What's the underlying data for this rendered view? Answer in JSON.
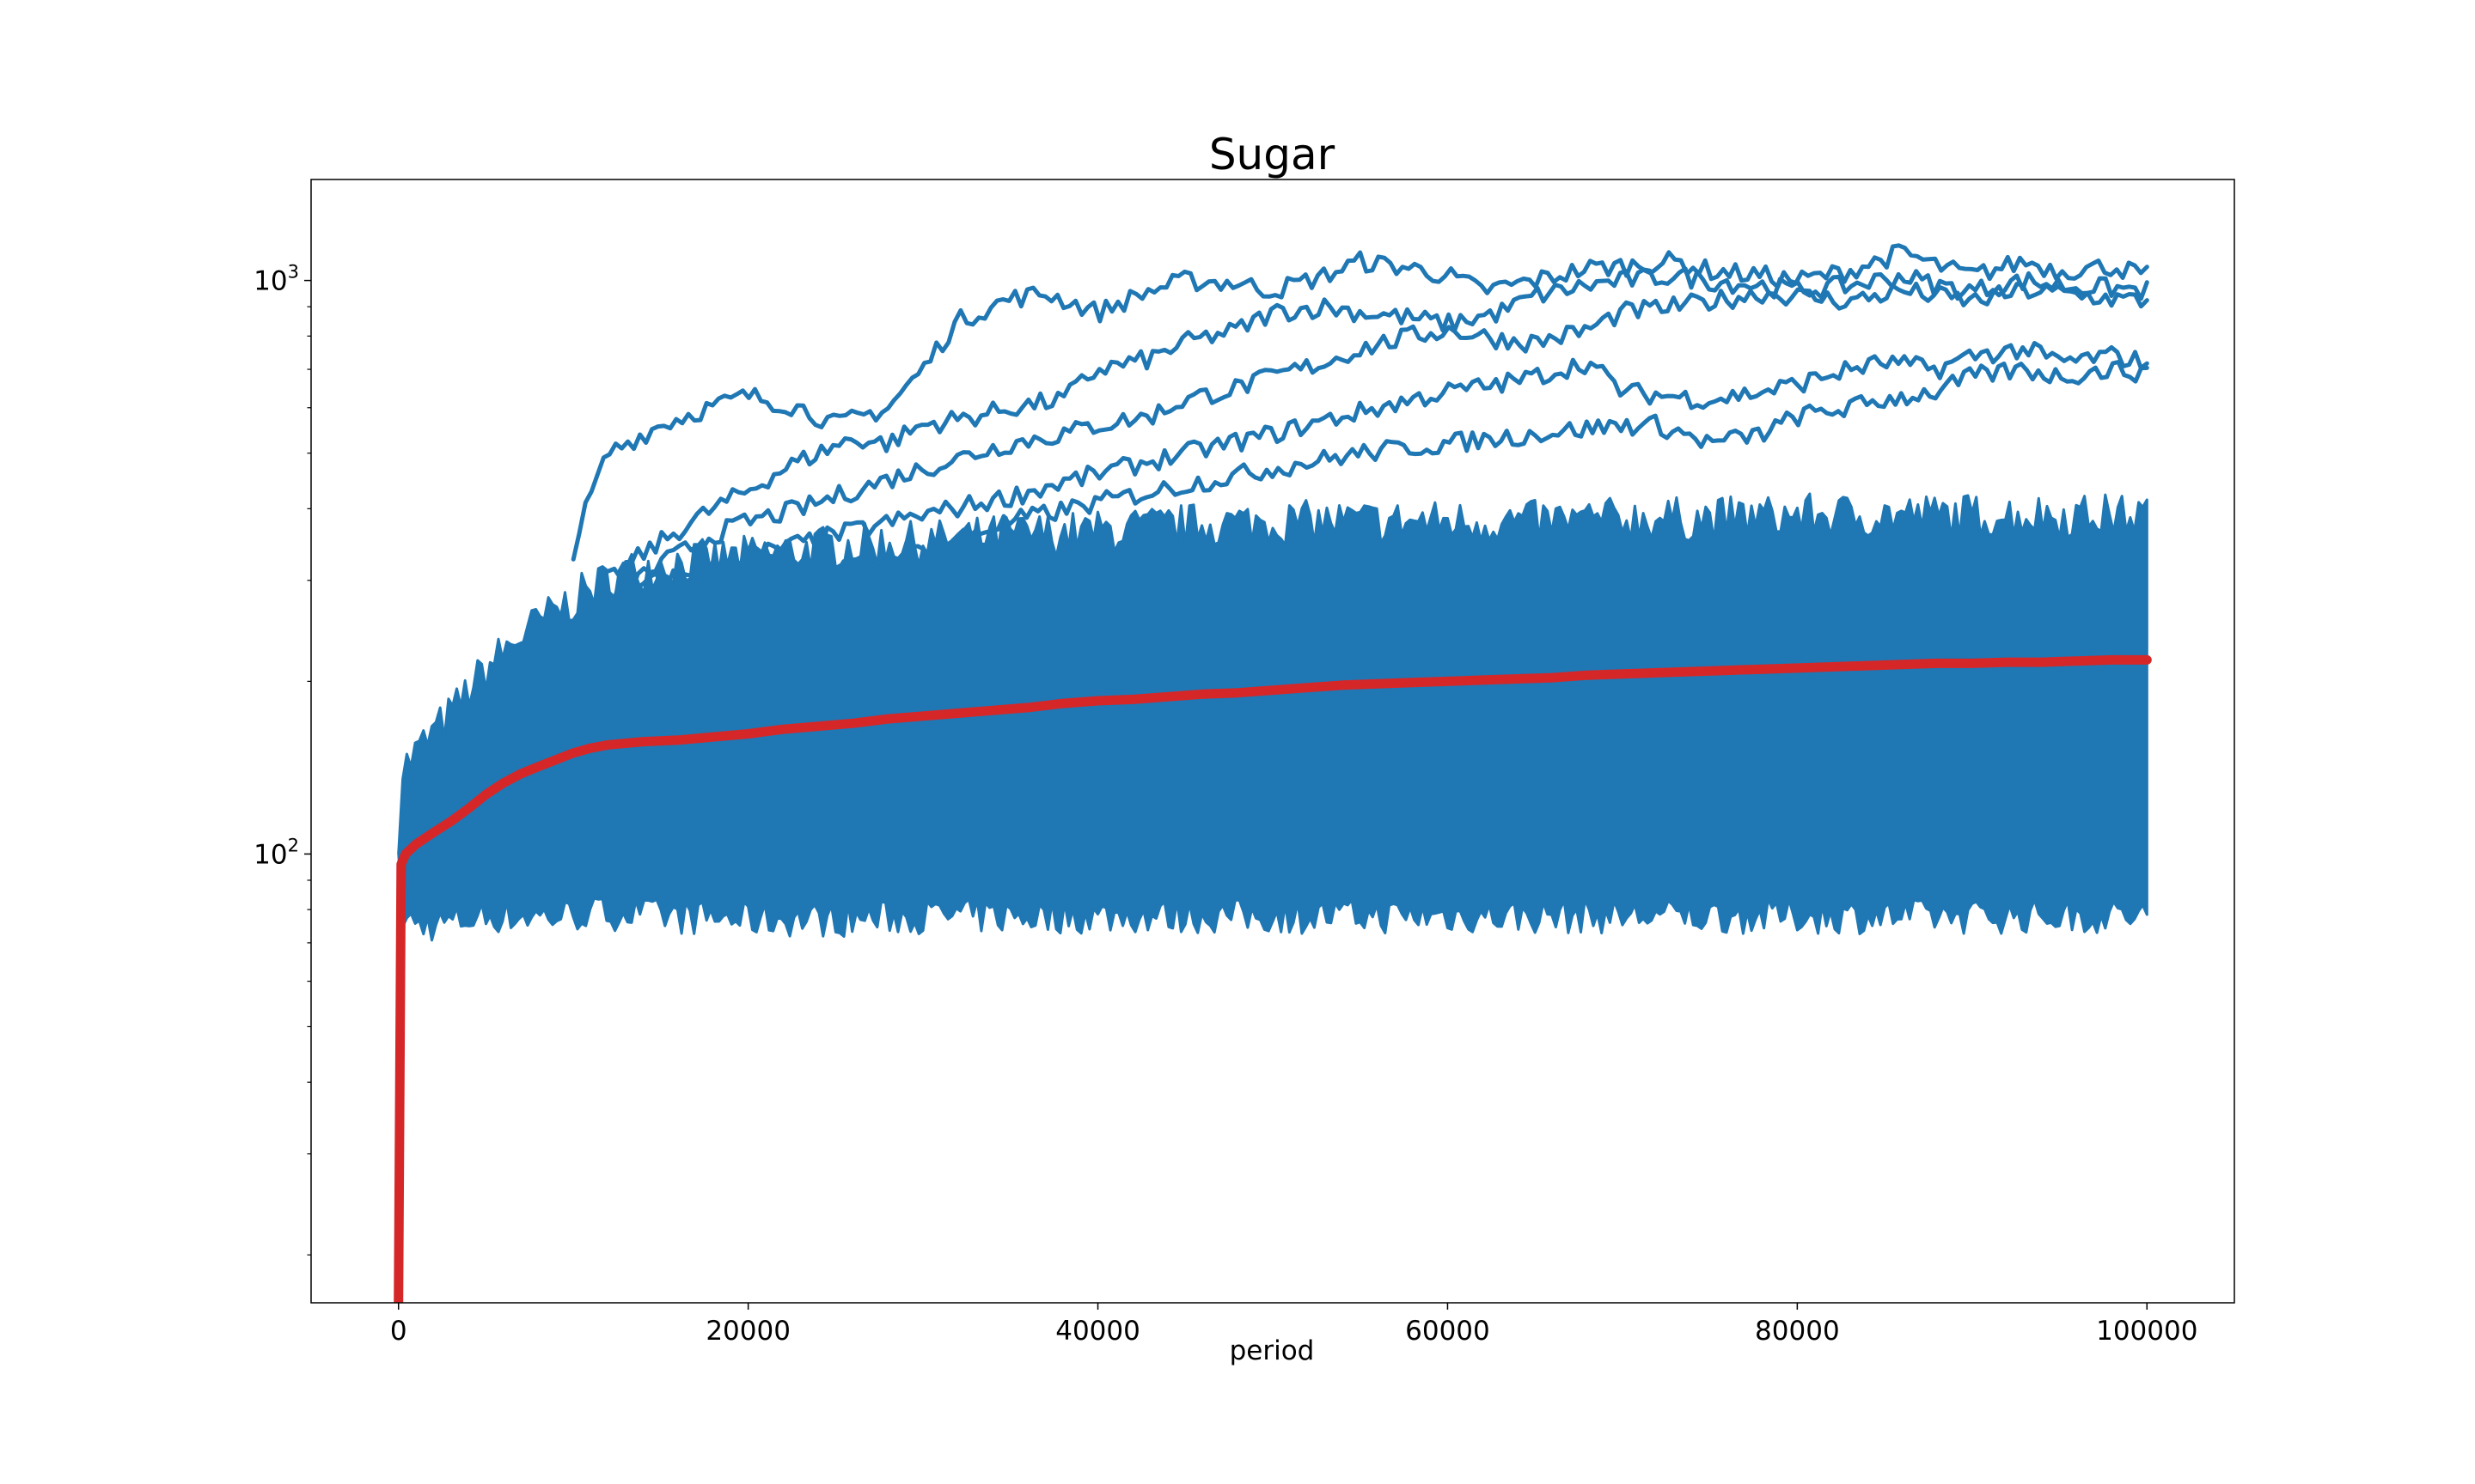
{
  "chart_data": {
    "type": "line",
    "title": "Sugar",
    "xlabel": "period",
    "ylabel": "",
    "xlim": [
      -5000,
      105000
    ],
    "ylim": [
      16.5,
      1500
    ],
    "yscale": "log",
    "grid": false,
    "legend": "none",
    "x_ticks": [
      {
        "value": 0,
        "label": "0"
      },
      {
        "value": 20000,
        "label": "20000"
      },
      {
        "value": 40000,
        "label": "40000"
      },
      {
        "value": 60000,
        "label": "60000"
      },
      {
        "value": 80000,
        "label": "80000"
      },
      {
        "value": 100000,
        "label": "100000"
      }
    ],
    "y_ticks": [
      {
        "value": 100,
        "base": "10",
        "exp": "2"
      },
      {
        "value": 1000,
        "base": "10",
        "exp": "3"
      }
    ],
    "colors": {
      "agents": "#1f77b4",
      "mean": "#d62728"
    },
    "band": {
      "x": [
        0,
        200,
        1000,
        3000,
        5000,
        7000,
        9000,
        11000,
        13000,
        15000,
        20000,
        25000,
        30000,
        35000,
        40000,
        45000,
        50000,
        55000,
        60000,
        65000,
        70000,
        75000,
        80000,
        85000,
        90000,
        95000,
        100000
      ],
      "low": [
        95,
        78,
        75,
        76,
        78,
        78,
        78,
        79,
        79,
        78,
        77,
        77,
        78,
        78,
        78,
        78,
        78,
        78,
        78,
        78,
        78,
        78,
        78,
        78,
        78,
        78,
        78
      ],
      "high": [
        110,
        140,
        150,
        175,
        210,
        240,
        265,
        290,
        310,
        320,
        330,
        345,
        350,
        360,
        365,
        375,
        380,
        380,
        380,
        380,
        385,
        385,
        390,
        390,
        390,
        390,
        390
      ]
    },
    "series": [
      {
        "role": "agent",
        "x": [
          10000,
          11000,
          12000,
          13000,
          15000,
          17000,
          20000,
          23000,
          25000,
          28000,
          30000,
          32000,
          35000,
          37000,
          40000,
          43000,
          45000,
          48000,
          50000,
          53000,
          55000,
          58000,
          60000,
          62000,
          65000,
          68000,
          70000,
          73000,
          75000,
          78000,
          80000,
          83000,
          86000,
          88000,
          90000,
          93000,
          95000,
          98000,
          100000
        ],
        "y": [
          340,
          420,
          500,
          520,
          560,
          590,
          630,
          600,
          560,
          600,
          700,
          850,
          930,
          950,
          880,
          960,
          1000,
          990,
          960,
          1020,
          1080,
          1050,
          1020,
          960,
          1000,
          1050,
          1060,
          1080,
          1040,
          1020,
          1000,
          1040,
          1120,
          1060,
          1020,
          1080,
          1040,
          1060,
          1020
        ]
      },
      {
        "role": "agent",
        "x": [
          12000,
          15000,
          18000,
          20000,
          22000,
          24000,
          26000,
          28000,
          30000,
          33000,
          35000,
          38000,
          40000,
          43000,
          45000,
          48000,
          50000,
          53000,
          55000,
          58000,
          60000,
          63000,
          65000,
          68000,
          70000,
          73000,
          75000,
          78000,
          80000,
          83000,
          86000,
          88000,
          90000,
          93000,
          95000,
          98000,
          100000
        ],
        "y": [
          300,
          350,
          400,
          430,
          470,
          500,
          530,
          520,
          560,
          580,
          600,
          620,
          700,
          730,
          780,
          820,
          880,
          900,
          880,
          860,
          840,
          880,
          940,
          980,
          1000,
          1020,
          1000,
          980,
          960,
          980,
          1020,
          980,
          960,
          1000,
          980,
          970,
          960
        ]
      },
      {
        "role": "agent",
        "x": [
          12000,
          15000,
          18000,
          20000,
          23000,
          25000,
          28000,
          30000,
          33000,
          35000,
          38000,
          40000,
          43000,
          45000,
          48000,
          50000,
          53000,
          55000,
          58000,
          60000,
          63000,
          65000,
          68000,
          70000,
          73000,
          75000,
          78000,
          80000,
          83000,
          86000,
          88000,
          90000,
          93000,
          95000,
          98000,
          100000
        ],
        "y": [
          280,
          320,
          360,
          380,
          400,
          420,
          450,
          470,
          500,
          520,
          540,
          560,
          580,
          620,
          650,
          680,
          720,
          760,
          800,
          820,
          790,
          780,
          820,
          880,
          900,
          920,
          950,
          940,
          920,
          960,
          940,
          920,
          960,
          950,
          930,
          920
        ]
      },
      {
        "role": "agent",
        "x": [
          12000,
          15000,
          20000,
          25000,
          30000,
          35000,
          40000,
          45000,
          50000,
          55000,
          60000,
          63000,
          65000,
          68000,
          70000,
          75000,
          78000,
          80000,
          83000,
          85000,
          88000,
          90000,
          93000,
          95000,
          98000,
          100000
        ],
        "y": [
          280,
          300,
          330,
          360,
          390,
          420,
          460,
          500,
          540,
          590,
          640,
          660,
          680,
          720,
          640,
          620,
          640,
          660,
          700,
          720,
          700,
          740,
          760,
          720,
          740,
          720
        ]
      },
      {
        "role": "agent",
        "x": [
          15000,
          20000,
          25000,
          30000,
          35000,
          40000,
          45000,
          50000,
          55000,
          60000,
          65000,
          70000,
          72000,
          75000,
          78000,
          80000,
          83000,
          85000,
          88000,
          90000,
          93000,
          95000,
          98000,
          100000
        ],
        "y": [
          260,
          280,
          310,
          340,
          380,
          410,
          440,
          470,
          500,
          520,
          540,
          560,
          560,
          520,
          540,
          580,
          600,
          620,
          640,
          680,
          700,
          680,
          700,
          690
        ]
      },
      {
        "role": "mean",
        "x": [
          0,
          150,
          400,
          1000,
          2000,
          3000,
          4000,
          5000,
          6000,
          7000,
          8000,
          9000,
          10000,
          11000,
          12000,
          14000,
          16000,
          18000,
          20000,
          22000,
          24000,
          26000,
          28000,
          30000,
          32000,
          34000,
          36000,
          38000,
          40000,
          42000,
          44000,
          46000,
          48000,
          50000,
          52000,
          54000,
          56000,
          58000,
          60000,
          62000,
          64000,
          66000,
          68000,
          70000,
          72000,
          74000,
          76000,
          78000,
          80000,
          82000,
          84000,
          86000,
          88000,
          90000,
          92000,
          94000,
          96000,
          98000,
          100000
        ],
        "y": [
          16.5,
          96,
          100,
          104,
          109,
          114,
          120,
          127,
          133,
          138,
          142,
          146,
          150,
          153,
          155,
          157,
          158,
          160,
          162,
          165,
          167,
          169,
          172,
          174,
          176,
          178,
          180,
          183,
          185,
          186,
          188,
          190,
          191,
          193,
          195,
          197,
          198,
          199,
          200,
          201,
          202,
          203,
          205,
          206,
          207,
          208,
          209,
          210,
          211,
          212,
          213,
          214,
          215,
          215,
          216,
          216,
          217,
          218,
          218
        ]
      }
    ]
  }
}
